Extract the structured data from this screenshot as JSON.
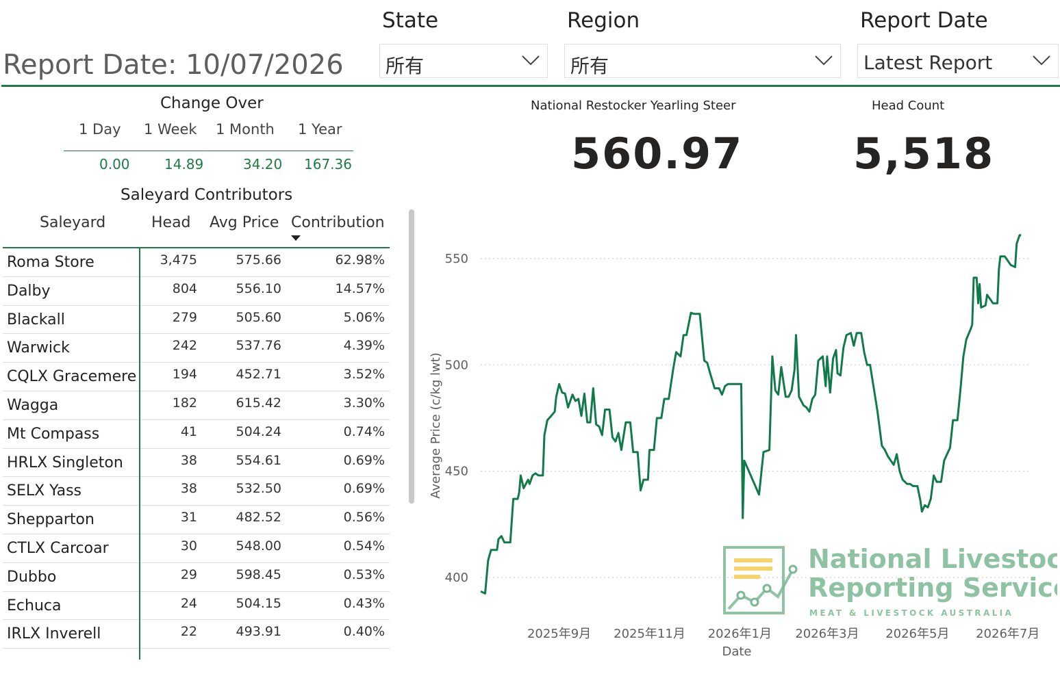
{
  "header": {
    "report_date_label": "Report Date: 10/07/2026"
  },
  "slicers": [
    {
      "title": "State",
      "value": "所有"
    },
    {
      "title": "Region",
      "value": "所有"
    },
    {
      "title": "Report Date",
      "value": "Latest Report"
    }
  ],
  "change_over": {
    "title": "Change Over",
    "labels": [
      "1 Day",
      "1 Week",
      "1 Month",
      "1 Year"
    ],
    "values": [
      "0.00",
      "14.89",
      "34.20",
      "167.36"
    ]
  },
  "saleyard_contributors": {
    "title": "Saleyard Contributors",
    "columns": [
      "Saleyard",
      "Head",
      "Avg Price",
      "Contribution"
    ],
    "rows": [
      {
        "name": "Roma Store",
        "head": "3,475",
        "avg_price": "575.66",
        "contribution": "62.98%"
      },
      {
        "name": "Dalby",
        "head": "804",
        "avg_price": "556.10",
        "contribution": "14.57%"
      },
      {
        "name": "Blackall",
        "head": "279",
        "avg_price": "505.60",
        "contribution": "5.06%"
      },
      {
        "name": "Warwick",
        "head": "242",
        "avg_price": "537.76",
        "contribution": "4.39%"
      },
      {
        "name": "CQLX Gracemere",
        "head": "194",
        "avg_price": "452.71",
        "contribution": "3.52%"
      },
      {
        "name": "Wagga",
        "head": "182",
        "avg_price": "615.42",
        "contribution": "3.30%"
      },
      {
        "name": "Mt Compass",
        "head": "41",
        "avg_price": "504.24",
        "contribution": "0.74%"
      },
      {
        "name": "HRLX Singleton",
        "head": "38",
        "avg_price": "554.61",
        "contribution": "0.69%"
      },
      {
        "name": "SELX Yass",
        "head": "38",
        "avg_price": "532.50",
        "contribution": "0.69%"
      },
      {
        "name": "Shepparton",
        "head": "31",
        "avg_price": "482.52",
        "contribution": "0.56%"
      },
      {
        "name": "CTLX Carcoar",
        "head": "30",
        "avg_price": "548.00",
        "contribution": "0.54%"
      },
      {
        "name": "Dubbo",
        "head": "29",
        "avg_price": "598.45",
        "contribution": "0.53%"
      },
      {
        "name": "Echuca",
        "head": "24",
        "avg_price": "504.15",
        "contribution": "0.43%"
      },
      {
        "name": "IRLX Inverell",
        "head": "22",
        "avg_price": "493.91",
        "contribution": "0.40%"
      }
    ]
  },
  "kpis": [
    {
      "label": "National Restocker Yearling Steer",
      "value": "560.97"
    },
    {
      "label": "Head Count",
      "value": "5,518"
    }
  ],
  "logo": {
    "line1": "National Livestock",
    "line2": "Reporting Service",
    "line3": "MEAT & LIVESTOCK AUSTRALIA"
  },
  "colors": {
    "accent": "#1e7a47",
    "line": "#117a4a",
    "logo": "#7ab894"
  },
  "chart_data": {
    "type": "line",
    "xlabel": "Date",
    "ylabel": "Average Price (c/kg lwt)",
    "ylim": [
      382,
      568
    ],
    "yticks": [
      400,
      450,
      500,
      550
    ],
    "xtick_labels": [
      "2025年9月",
      "2025年11月",
      "2026年1月",
      "2026年3月",
      "2026年5月",
      "2026年7月"
    ],
    "xlim": [
      "2025-07-10",
      "2026-07-15"
    ],
    "grid": true,
    "series": [
      {
        "values": [
          [
            "2025-07-10",
            393.5
          ],
          [
            "2025-07-13",
            392.5
          ],
          [
            "2025-07-15",
            408
          ],
          [
            "2025-07-17",
            413
          ],
          [
            "2025-07-21",
            413
          ],
          [
            "2025-07-22",
            418
          ],
          [
            "2025-07-24",
            419.5
          ],
          [
            "2025-07-26",
            416.5
          ],
          [
            "2025-07-30",
            416.5
          ],
          [
            "2025-08-01",
            437
          ],
          [
            "2025-08-04",
            437
          ],
          [
            "2025-08-05",
            440
          ],
          [
            "2025-08-06",
            448
          ],
          [
            "2025-08-08",
            442
          ],
          [
            "2025-08-11",
            446
          ],
          [
            "2025-08-12",
            444
          ],
          [
            "2025-08-14",
            448
          ],
          [
            "2025-08-16",
            449
          ],
          [
            "2025-08-18",
            448
          ],
          [
            "2025-08-21",
            448
          ],
          [
            "2025-08-22",
            467
          ],
          [
            "2025-08-24",
            474
          ],
          [
            "2025-08-26",
            475.5
          ],
          [
            "2025-08-29",
            478
          ],
          [
            "2025-08-30",
            485
          ],
          [
            "2025-09-01",
            491
          ],
          [
            "2025-09-03",
            487
          ],
          [
            "2025-09-05",
            486.5
          ],
          [
            "2025-09-07",
            480
          ],
          [
            "2025-09-10",
            486
          ],
          [
            "2025-09-12",
            483
          ],
          [
            "2025-09-14",
            484
          ],
          [
            "2025-09-16",
            476
          ],
          [
            "2025-09-18",
            486.5
          ],
          [
            "2025-09-20",
            473
          ],
          [
            "2025-09-22",
            473
          ],
          [
            "2025-09-24",
            489
          ],
          [
            "2025-09-26",
            472
          ],
          [
            "2025-09-28",
            471
          ],
          [
            "2025-09-30",
            467
          ],
          [
            "2025-10-02",
            479
          ],
          [
            "2025-10-05",
            479
          ],
          [
            "2025-10-07",
            466
          ],
          [
            "2025-10-09",
            464
          ],
          [
            "2025-10-11",
            468
          ],
          [
            "2025-10-13",
            460
          ],
          [
            "2025-10-16",
            473
          ],
          [
            "2025-10-19",
            473
          ],
          [
            "2025-10-21",
            459
          ],
          [
            "2025-10-24",
            459
          ],
          [
            "2025-10-26",
            441
          ],
          [
            "2025-10-28",
            446
          ],
          [
            "2025-10-31",
            446
          ],
          [
            "2025-11-01",
            460
          ],
          [
            "2025-11-04",
            460
          ],
          [
            "2025-11-06",
            475
          ],
          [
            "2025-11-09",
            475
          ],
          [
            "2025-11-11",
            484
          ],
          [
            "2025-11-14",
            484
          ],
          [
            "2025-11-17",
            498
          ],
          [
            "2025-11-19",
            506
          ],
          [
            "2025-11-22",
            504
          ],
          [
            "2025-11-24",
            514
          ],
          [
            "2025-11-26",
            514
          ],
          [
            "2025-11-29",
            524.5
          ],
          [
            "2025-12-01",
            524
          ],
          [
            "2025-12-05",
            524
          ],
          [
            "2025-12-08",
            502
          ],
          [
            "2025-12-10",
            501
          ],
          [
            "2025-12-12",
            496
          ],
          [
            "2025-12-15",
            489
          ],
          [
            "2025-12-18",
            489
          ],
          [
            "2025-12-20",
            486
          ],
          [
            "2025-12-22",
            490
          ],
          [
            "2025-12-24",
            491
          ],
          [
            "2026-01-02",
            491
          ],
          [
            "2026-01-03",
            428
          ],
          [
            "2026-01-04",
            455
          ],
          [
            "2026-01-14",
            439
          ],
          [
            "2026-01-17",
            459
          ],
          [
            "2026-01-21",
            460
          ],
          [
            "2026-01-23",
            504
          ],
          [
            "2026-01-25",
            488
          ],
          [
            "2026-01-27",
            486
          ],
          [
            "2026-01-29",
            499
          ],
          [
            "2026-02-01",
            485
          ],
          [
            "2026-02-03",
            485
          ],
          [
            "2026-02-05",
            488
          ],
          [
            "2026-02-07",
            498
          ],
          [
            "2026-02-08",
            514
          ],
          [
            "2026-02-10",
            485
          ],
          [
            "2026-02-13",
            481
          ],
          [
            "2026-02-15",
            480
          ],
          [
            "2026-02-17",
            478
          ],
          [
            "2026-02-19",
            484
          ],
          [
            "2026-02-21",
            486
          ],
          [
            "2026-02-23",
            502
          ],
          [
            "2026-02-26",
            504
          ],
          [
            "2026-02-28",
            490
          ],
          [
            "2026-03-01",
            504
          ],
          [
            "2026-03-03",
            487
          ],
          [
            "2026-03-05",
            503
          ],
          [
            "2026-03-07",
            507
          ],
          [
            "2026-03-08",
            496
          ],
          [
            "2026-03-10",
            495
          ],
          [
            "2026-03-12",
            508
          ],
          [
            "2026-03-14",
            514
          ],
          [
            "2026-03-17",
            515
          ],
          [
            "2026-03-19",
            509
          ],
          [
            "2026-03-21",
            515
          ],
          [
            "2026-03-24",
            515
          ],
          [
            "2026-03-26",
            506
          ],
          [
            "2026-03-28",
            500
          ],
          [
            "2026-03-30",
            500
          ],
          [
            "2026-04-02",
            487
          ],
          [
            "2026-04-04",
            478
          ],
          [
            "2026-04-07",
            462
          ],
          [
            "2026-04-09",
            460
          ],
          [
            "2026-04-11",
            457
          ],
          [
            "2026-04-13",
            455
          ],
          [
            "2026-04-15",
            453
          ],
          [
            "2026-04-17",
            458
          ],
          [
            "2026-04-19",
            450
          ],
          [
            "2026-04-21",
            446
          ],
          [
            "2026-04-24",
            444
          ],
          [
            "2026-04-26",
            444
          ],
          [
            "2026-04-28",
            443
          ],
          [
            "2026-05-01",
            443
          ],
          [
            "2026-05-03",
            436
          ],
          [
            "2026-05-04",
            431
          ],
          [
            "2026-05-06",
            434
          ],
          [
            "2026-05-08",
            433
          ],
          [
            "2026-05-10",
            437
          ],
          [
            "2026-05-12",
            448
          ],
          [
            "2026-05-14",
            445
          ],
          [
            "2026-05-17",
            445
          ],
          [
            "2026-05-19",
            455
          ],
          [
            "2026-05-21",
            458
          ],
          [
            "2026-05-23",
            461
          ],
          [
            "2026-05-25",
            474
          ],
          [
            "2026-05-28",
            474
          ],
          [
            "2026-05-30",
            488
          ],
          [
            "2026-06-01",
            504
          ],
          [
            "2026-06-03",
            512
          ],
          [
            "2026-06-06",
            517
          ],
          [
            "2026-06-07",
            519
          ],
          [
            "2026-06-08",
            541
          ],
          [
            "2026-06-10",
            541
          ],
          [
            "2026-06-11",
            529
          ],
          [
            "2026-06-12",
            538
          ],
          [
            "2026-06-13",
            527
          ],
          [
            "2026-06-16",
            528
          ],
          [
            "2026-06-17",
            533
          ],
          [
            "2026-06-19",
            531
          ],
          [
            "2026-06-21",
            529
          ],
          [
            "2026-06-24",
            529
          ],
          [
            "2026-06-25",
            545
          ],
          [
            "2026-06-26",
            551
          ],
          [
            "2026-06-29",
            551
          ],
          [
            "2026-07-01",
            549
          ],
          [
            "2026-07-03",
            547
          ],
          [
            "2026-07-06",
            546
          ],
          [
            "2026-07-07",
            557
          ],
          [
            "2026-07-09",
            561
          ],
          [
            "2026-07-10",
            560.97
          ]
        ]
      }
    ]
  }
}
